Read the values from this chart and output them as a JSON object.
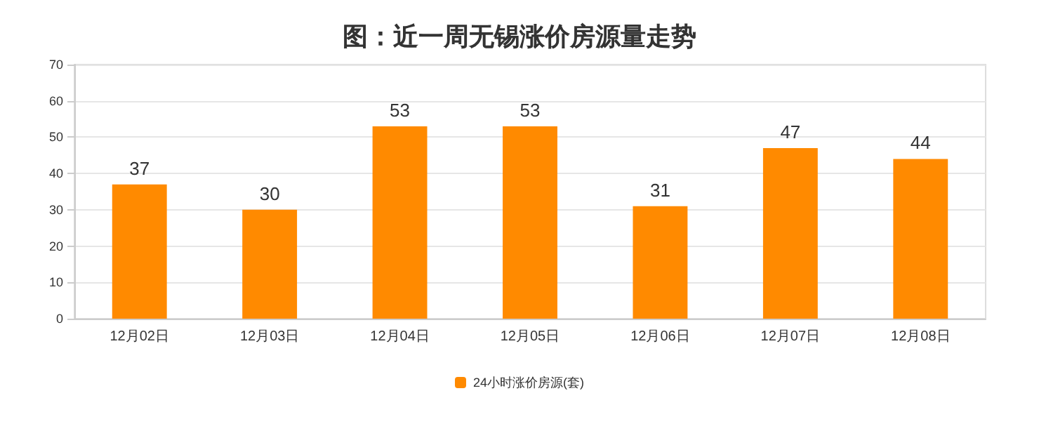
{
  "chart_data": {
    "type": "bar",
    "title": "图：近一周无锡涨价房源量走势",
    "categories": [
      "12月02日",
      "12月03日",
      "12月04日",
      "12月05日",
      "12月06日",
      "12月07日",
      "12月08日"
    ],
    "series": [
      {
        "name": "24小时涨价房源(套)",
        "color": "#ff8a00",
        "values": [
          37,
          30,
          53,
          53,
          31,
          47,
          44
        ]
      }
    ],
    "ylim": [
      0,
      70
    ],
    "yticks": [
      0,
      10,
      20,
      30,
      40,
      50,
      60,
      70
    ],
    "grid": "y",
    "legend": "bottom",
    "data_labels": true
  }
}
